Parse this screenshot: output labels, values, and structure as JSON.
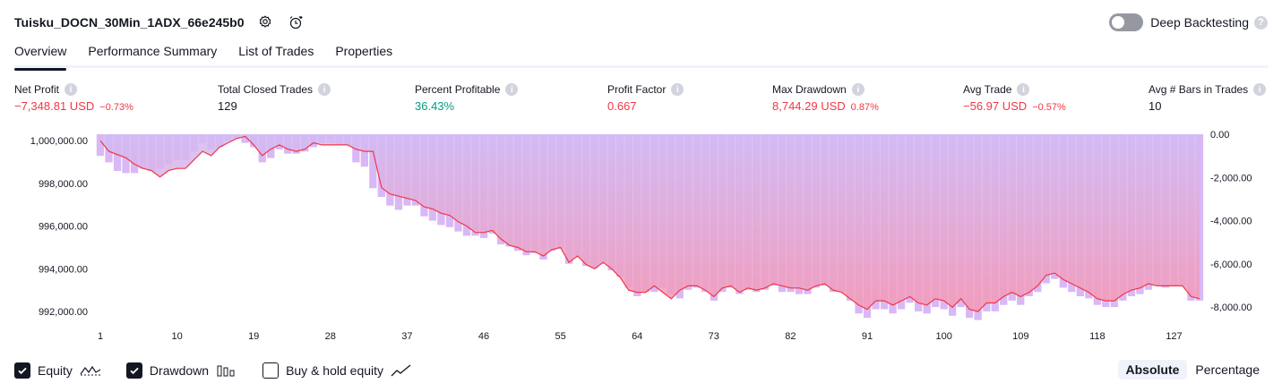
{
  "header": {
    "strategy_name": "Tuisku_DOCN_30Min_1ADX_66e245b0",
    "deep_backtesting_label": "Deep Backtesting",
    "deep_backtesting_enabled": false
  },
  "tabs": [
    {
      "label": "Overview",
      "active": true
    },
    {
      "label": "Performance Summary",
      "active": false
    },
    {
      "label": "List of Trades",
      "active": false
    },
    {
      "label": "Properties",
      "active": false
    }
  ],
  "stats": {
    "net_profit": {
      "label": "Net Profit",
      "value": "−7,348.81 USD",
      "pct": "−0.73%"
    },
    "total_closed_trades": {
      "label": "Total Closed Trades",
      "value": "129"
    },
    "percent_profitable": {
      "label": "Percent Profitable",
      "value": "36.43%"
    },
    "profit_factor": {
      "label": "Profit Factor",
      "value": "0.667"
    },
    "max_drawdown": {
      "label": "Max Drawdown",
      "value": "8,744.29 USD",
      "pct": "0.87%"
    },
    "avg_trade": {
      "label": "Avg Trade",
      "value": "−56.97 USD",
      "pct": "−0.57%"
    },
    "avg_bars": {
      "label": "Avg # Bars in Trades",
      "value": "10"
    }
  },
  "chart_data": {
    "type": "line",
    "left_axis": {
      "ticks": [
        1000000,
        998000,
        996000,
        994000,
        992000
      ],
      "tick_labels": [
        "1,000,000.00",
        "998,000.00",
        "996,000.00",
        "994,000.00",
        "992,000.00"
      ],
      "range": [
        991500,
        1000300
      ]
    },
    "right_axis": {
      "ticks": [
        0,
        -2000,
        -4000,
        -6000,
        -8000
      ],
      "tick_labels": [
        "0.00",
        "-2,000.00",
        "-4,000.00",
        "-6,000.00",
        "-8,000.00"
      ],
      "range": [
        -8700,
        0
      ]
    },
    "x_ticks": [
      1,
      10,
      19,
      28,
      37,
      46,
      55,
      64,
      73,
      82,
      91,
      100,
      109,
      118,
      127
    ],
    "x_range": [
      1,
      130
    ],
    "series": [
      {
        "name": "Equity",
        "axis": "left",
        "points": [
          [
            1,
            1000000
          ],
          [
            2,
            999500
          ],
          [
            4,
            999200
          ],
          [
            5,
            998900
          ],
          [
            6,
            998700
          ],
          [
            7,
            998600
          ],
          [
            8,
            998300
          ],
          [
            9,
            998600
          ],
          [
            10,
            998700
          ],
          [
            11,
            998700
          ],
          [
            12,
            999100
          ],
          [
            13,
            999500
          ],
          [
            14,
            999300
          ],
          [
            15,
            999700
          ],
          [
            16,
            999900
          ],
          [
            17,
            1000100
          ],
          [
            18,
            1000200
          ],
          [
            19,
            999800
          ],
          [
            20,
            999300
          ],
          [
            21,
            999600
          ],
          [
            22,
            999800
          ],
          [
            23,
            999600
          ],
          [
            24,
            999500
          ],
          [
            25,
            999600
          ],
          [
            26,
            999900
          ],
          [
            27,
            999800
          ],
          [
            28,
            999800
          ],
          [
            29,
            999800
          ],
          [
            30,
            999800
          ],
          [
            31,
            999600
          ],
          [
            32,
            999500
          ],
          [
            33,
            999500
          ],
          [
            34,
            997800
          ],
          [
            35,
            997500
          ],
          [
            36,
            997400
          ],
          [
            37,
            997300
          ],
          [
            38,
            997200
          ],
          [
            39,
            996900
          ],
          [
            40,
            996800
          ],
          [
            41,
            996600
          ],
          [
            42,
            996500
          ],
          [
            43,
            996200
          ],
          [
            44,
            996000
          ],
          [
            45,
            995700
          ],
          [
            46,
            995700
          ],
          [
            47,
            995800
          ],
          [
            48,
            995400
          ],
          [
            49,
            995100
          ],
          [
            50,
            995000
          ],
          [
            51,
            994800
          ],
          [
            52,
            994800
          ],
          [
            53,
            994600
          ],
          [
            54,
            994900
          ],
          [
            55,
            995000
          ],
          [
            56,
            994300
          ],
          [
            57,
            994600
          ],
          [
            58,
            994200
          ],
          [
            59,
            994000
          ],
          [
            60,
            994300
          ],
          [
            61,
            994000
          ],
          [
            62,
            993600
          ],
          [
            63,
            993000
          ],
          [
            64,
            992900
          ],
          [
            65,
            992900
          ],
          [
            66,
            993200
          ],
          [
            67,
            992900
          ],
          [
            68,
            992600
          ],
          [
            69,
            993000
          ],
          [
            70,
            993200
          ],
          [
            71,
            993200
          ],
          [
            72,
            993000
          ],
          [
            73,
            992700
          ],
          [
            74,
            993100
          ],
          [
            75,
            993200
          ],
          [
            76,
            992900
          ],
          [
            77,
            993100
          ],
          [
            78,
            993000
          ],
          [
            79,
            993100
          ],
          [
            80,
            993300
          ],
          [
            81,
            993200
          ],
          [
            82,
            993100
          ],
          [
            83,
            993100
          ],
          [
            84,
            993000
          ],
          [
            85,
            993200
          ],
          [
            86,
            993300
          ],
          [
            87,
            993000
          ],
          [
            88,
            992900
          ],
          [
            89,
            992600
          ],
          [
            90,
            992300
          ],
          [
            91,
            992100
          ],
          [
            92,
            992500
          ],
          [
            93,
            992500
          ],
          [
            94,
            992300
          ],
          [
            95,
            992500
          ],
          [
            96,
            992700
          ],
          [
            97,
            992400
          ],
          [
            98,
            992300
          ],
          [
            99,
            992600
          ],
          [
            100,
            992500
          ],
          [
            101,
            992200
          ],
          [
            102,
            992600
          ],
          [
            103,
            992100
          ],
          [
            104,
            992000
          ],
          [
            105,
            992400
          ],
          [
            106,
            992400
          ],
          [
            107,
            992700
          ],
          [
            108,
            992900
          ],
          [
            109,
            992700
          ],
          [
            110,
            992900
          ],
          [
            111,
            993200
          ],
          [
            112,
            993700
          ],
          [
            113,
            993800
          ],
          [
            114,
            993500
          ],
          [
            115,
            993300
          ],
          [
            116,
            993100
          ],
          [
            117,
            992900
          ],
          [
            118,
            992600
          ],
          [
            119,
            992500
          ],
          [
            120,
            992500
          ],
          [
            121,
            992800
          ],
          [
            122,
            993000
          ],
          [
            123,
            993100
          ],
          [
            124,
            993300
          ],
          [
            125,
            993200
          ],
          [
            126,
            993200
          ],
          [
            127,
            993200
          ],
          [
            128,
            993200
          ],
          [
            129,
            992700
          ],
          [
            130,
            992600
          ]
        ]
      },
      {
        "name": "Drawdown",
        "axis": "right",
        "values": [
          -1000,
          -1300,
          -1700,
          -1800,
          -1800,
          -1600,
          -1700,
          -1600,
          -1400,
          -1200,
          -1200,
          -800,
          -400,
          -700,
          -600,
          -300,
          -200,
          -400,
          -600,
          -1300,
          -1100,
          -700,
          -900,
          -900,
          -800,
          -600,
          -400,
          -400,
          -500,
          -500,
          -1300,
          -1500,
          -2500,
          -2900,
          -3300,
          -3500,
          -3300,
          -3300,
          -3800,
          -4000,
          -4200,
          -4300,
          -4500,
          -4700,
          -4700,
          -4800,
          -4600,
          -5100,
          -5200,
          -5400,
          -5600,
          -5500,
          -5800,
          -5400,
          -5300,
          -6000,
          -5700,
          -6100,
          -6200,
          -6000,
          -6300,
          -6600,
          -7100,
          -7500,
          -7300,
          -7300,
          -7100,
          -7400,
          -7600,
          -7200,
          -7100,
          -7300,
          -7700,
          -7300,
          -7100,
          -7400,
          -7200,
          -7300,
          -7200,
          -7000,
          -7300,
          -7300,
          -7400,
          -7400,
          -7100,
          -7000,
          -7300,
          -7300,
          -7700,
          -8300,
          -8500,
          -8100,
          -8100,
          -8300,
          -8100,
          -7800,
          -8200,
          -8300,
          -8000,
          -8100,
          -8400,
          -8000,
          -8500,
          -8600,
          -8200,
          -8200,
          -7900,
          -7700,
          -7900,
          -7500,
          -7300,
          -6900,
          -6700,
          -7100,
          -7300,
          -7500,
          -7600,
          -7900,
          -8000,
          -8000,
          -7700,
          -7500,
          -7400,
          -7200,
          -7000,
          -7100,
          -7000,
          -7000,
          -7700,
          -7700
        ]
      },
      {
        "name": "Buy & hold equity",
        "axis": "left",
        "visible": false
      }
    ]
  },
  "legend": [
    {
      "label": "Equity",
      "checked": true
    },
    {
      "label": "Drawdown",
      "checked": true
    },
    {
      "label": "Buy & hold equity",
      "checked": false
    }
  ],
  "scale_toggle": {
    "absolute": "Absolute",
    "percentage": "Percentage",
    "selected": "Absolute"
  },
  "colors": {
    "drawdown_bar": "#d9b8f5",
    "equity_line": "#f23645",
    "area_top": "#d2bbf5",
    "area_bottom": "#f598b4",
    "profit_green": "#089981"
  },
  "icons": {
    "settings": "gear-icon",
    "alert": "alarm-clock-icon",
    "help": "question-icon"
  }
}
